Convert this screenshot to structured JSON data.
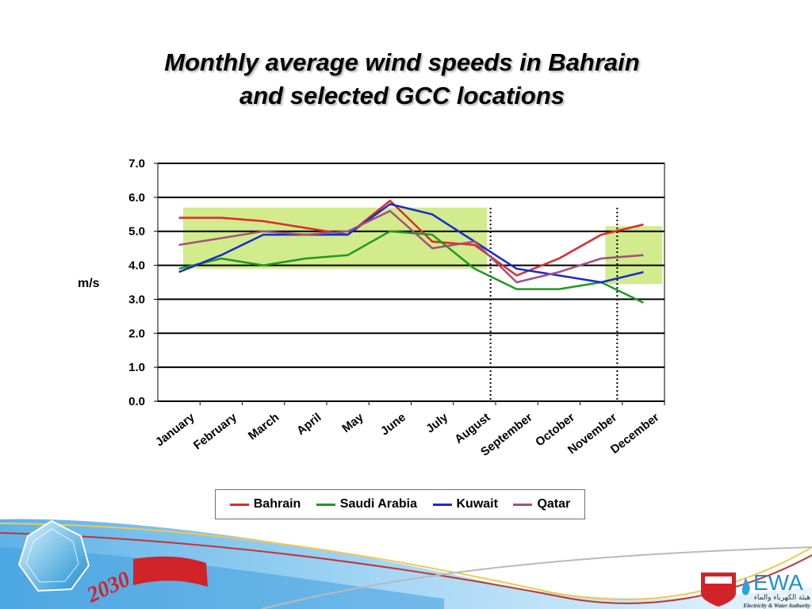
{
  "slide": {
    "title_line1": "Monthly average wind speeds in Bahrain",
    "title_line2": "and selected GCC locations"
  },
  "footer": {
    "vision_label": "2030",
    "logo_text": "EWA",
    "logo_arabic": "هيئة الكهرباء والماء",
    "logo_subtitle": "Electricity & Water Authority"
  },
  "chart_data": {
    "type": "line",
    "title": "",
    "xlabel": "",
    "ylabel": "m/s",
    "ylim": [
      0,
      7
    ],
    "yticks": [
      "0.0",
      "1.0",
      "2.0",
      "3.0",
      "4.0",
      "5.0",
      "6.0",
      "7.0"
    ],
    "grid": "horizontal",
    "legend_position": "bottom",
    "categories": [
      "January",
      "February",
      "March",
      "April",
      "May",
      "June",
      "July",
      "August",
      "September",
      "October",
      "November",
      "December"
    ],
    "series": [
      {
        "name": "Bahrain",
        "color": "#e0282a",
        "values": [
          5.4,
          5.4,
          5.3,
          5.1,
          4.9,
          5.9,
          4.7,
          4.6,
          3.7,
          4.2,
          4.9,
          5.2
        ]
      },
      {
        "name": "Saudi Arabia",
        "color": "#1e9a1e",
        "values": [
          3.9,
          4.2,
          4.0,
          4.2,
          4.3,
          5.0,
          4.9,
          3.9,
          3.3,
          3.3,
          3.5,
          2.9
        ]
      },
      {
        "name": "Kuwait",
        "color": "#1a28d6",
        "values": [
          3.8,
          4.3,
          4.9,
          4.9,
          4.9,
          5.8,
          5.5,
          4.7,
          3.9,
          3.7,
          3.5,
          3.8
        ]
      },
      {
        "name": "Qatar",
        "color": "#a0527a",
        "values": [
          4.6,
          4.8,
          5.0,
          4.9,
          5.0,
          5.6,
          4.5,
          4.7,
          3.5,
          3.8,
          4.2,
          4.3
        ]
      }
    ],
    "highlight_bands": [
      {
        "from": "January",
        "to": "August",
        "ymin": 3.9,
        "ymax": 5.7,
        "color": "#d2eb8c"
      },
      {
        "from": "November",
        "to": "December",
        "ymin": 3.45,
        "ymax": 5.15,
        "color": "#d2eb8c"
      }
    ],
    "dividers": [
      "August",
      "November"
    ]
  }
}
